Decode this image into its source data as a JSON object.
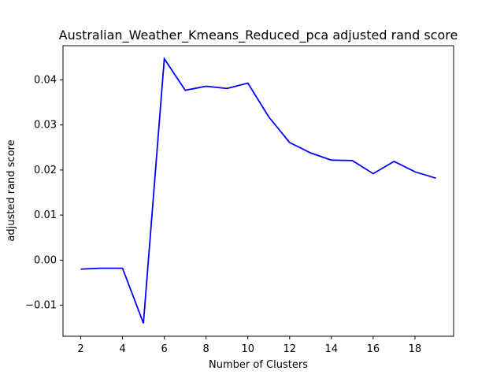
{
  "chart_data": {
    "type": "line",
    "title": "Australian_Weather_Kmeans_Reduced_pca adjusted rand score",
    "xlabel": "Number of Clusters",
    "ylabel": "adjusted rand score",
    "x": [
      2,
      3,
      4,
      5,
      6,
      7,
      8,
      9,
      10,
      11,
      12,
      13,
      14,
      15,
      16,
      17,
      18,
      19
    ],
    "series": [
      {
        "values": [
          -0.002,
          -0.0018,
          -0.0018,
          -0.014,
          0.0447,
          0.0377,
          0.0386,
          0.0381,
          0.0393,
          0.0318,
          0.0261,
          0.0238,
          0.0222,
          0.0221,
          0.0192,
          0.0219,
          0.0196,
          0.0182
        ],
        "color": "#0000ff"
      }
    ],
    "xlim": [
      1.15,
      19.85
    ],
    "ylim": [
      -0.0169,
      0.0476
    ],
    "xticks": [
      2,
      4,
      6,
      8,
      10,
      12,
      14,
      16,
      18
    ],
    "xtick_labels": [
      "2",
      "4",
      "6",
      "8",
      "10",
      "12",
      "14",
      "16",
      "18"
    ],
    "yticks": [
      -0.01,
      0.0,
      0.01,
      0.02,
      0.03,
      0.04
    ],
    "ytick_labels": [
      "−0.01",
      "0.00",
      "0.01",
      "0.02",
      "0.03",
      "0.04"
    ],
    "grid": false,
    "legend": false
  }
}
